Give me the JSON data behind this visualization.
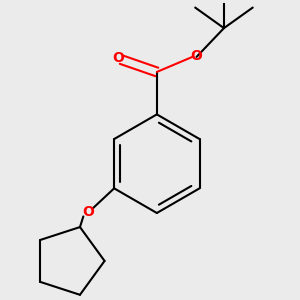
{
  "background_color": "#ebebeb",
  "line_color": "#000000",
  "atom_color_O": "#ff0000",
  "line_width": 1.5,
  "figsize": [
    3.0,
    3.0
  ],
  "dpi": 100,
  "xlim": [
    -1.8,
    2.2
  ],
  "ylim": [
    -2.5,
    1.8
  ]
}
